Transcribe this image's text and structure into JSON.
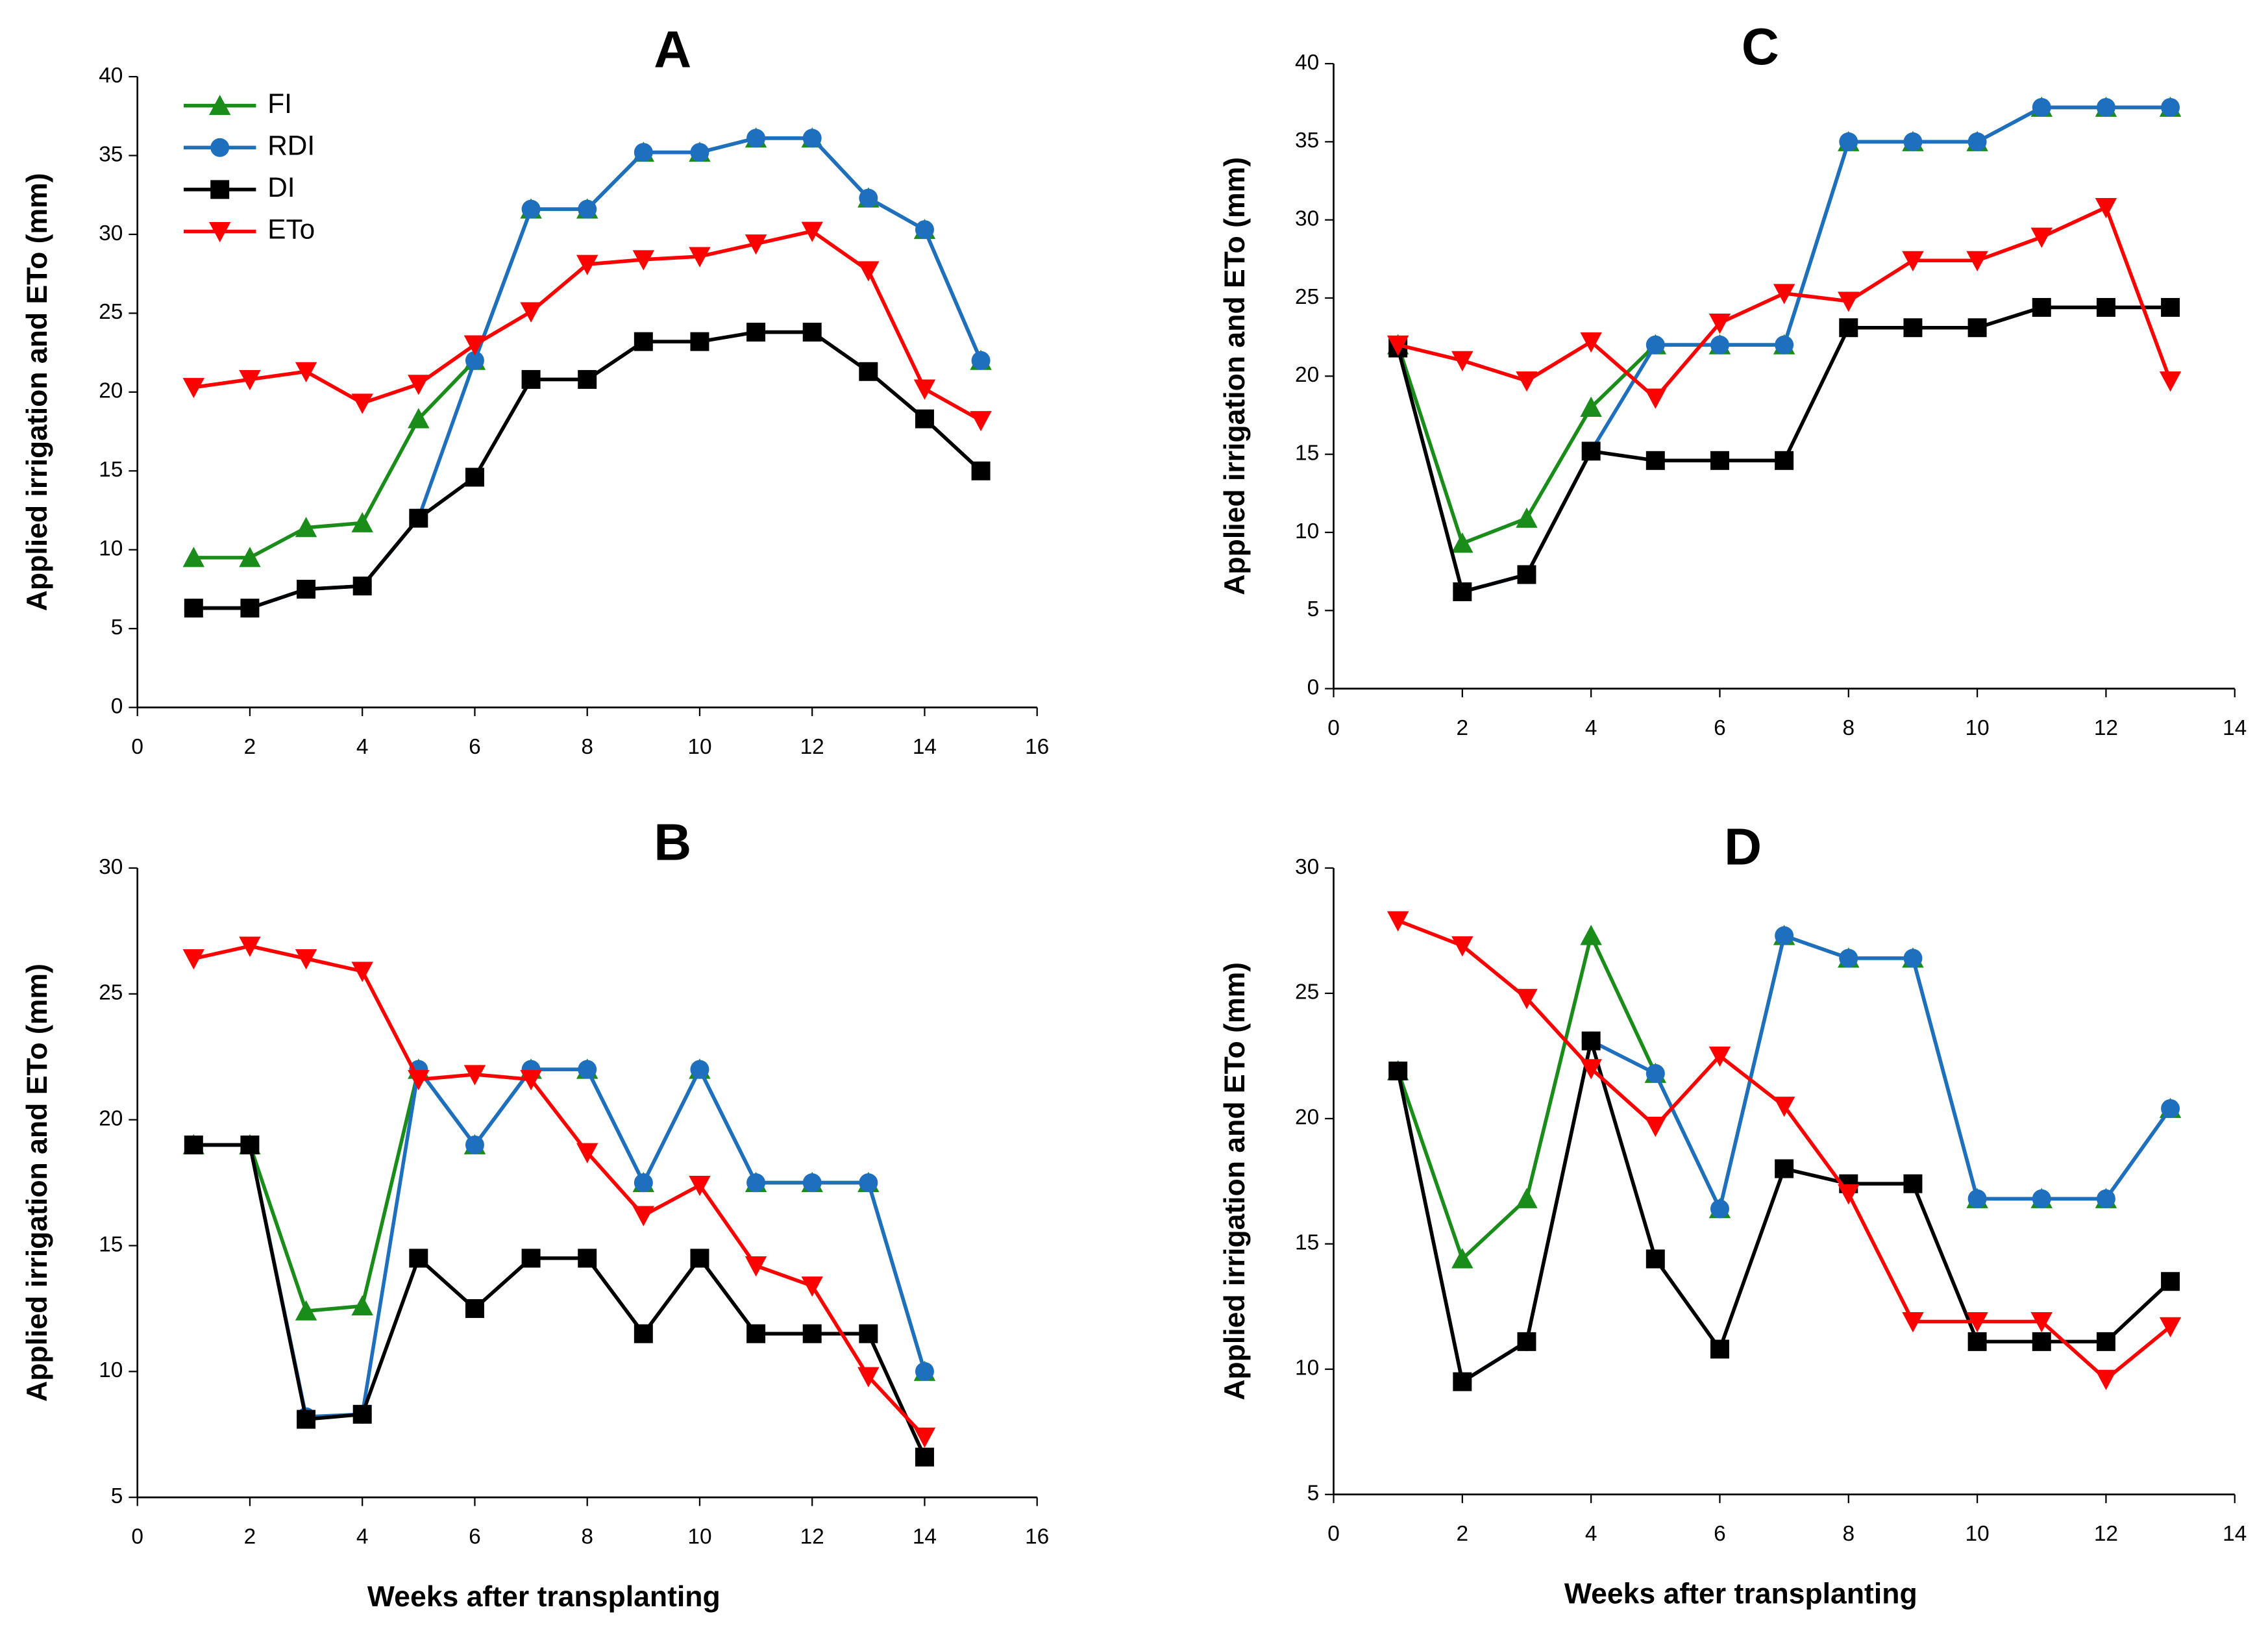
{
  "chart_data": [
    {
      "type": "line",
      "title": "A",
      "y_label": "Applied irrigation and ETo (mm)",
      "x": [
        1,
        2,
        3,
        4,
        5,
        6,
        7,
        8,
        9,
        10,
        11,
        12,
        13,
        14,
        15
      ],
      "xlim": [
        0,
        16
      ],
      "xticks": [
        0,
        2,
        4,
        6,
        8,
        10,
        12,
        14,
        16
      ],
      "ylim": [
        0,
        40
      ],
      "yticks": [
        0,
        5,
        10,
        15,
        20,
        25,
        30,
        35,
        40
      ],
      "legend": "upper left",
      "series": [
        {
          "name": "FI",
          "color": "#1a8c1a",
          "marker": "triangle-up",
          "values": [
            9.5,
            9.5,
            11.4,
            11.7,
            18.3,
            22,
            31.6,
            31.6,
            35.2,
            35.2,
            36.1,
            36.1,
            32.3,
            30.3,
            22
          ]
        },
        {
          "name": "RDI",
          "color": "#1f6fbf",
          "marker": "circle",
          "values": [
            6.3,
            6.3,
            7.5,
            7.7,
            12,
            22,
            31.6,
            31.6,
            35.2,
            35.2,
            36.1,
            36.1,
            32.3,
            30.3,
            22
          ]
        },
        {
          "name": "DI",
          "color": "#000000",
          "marker": "square",
          "values": [
            6.3,
            6.3,
            7.5,
            7.7,
            12,
            14.6,
            20.8,
            20.8,
            23.2,
            23.2,
            23.8,
            23.8,
            21.3,
            18.3,
            15
          ]
        },
        {
          "name": "ETo",
          "color": "#ff0000",
          "marker": "triangle-down",
          "values": [
            20.3,
            20.8,
            21.3,
            19.3,
            20.5,
            23,
            25.1,
            28.1,
            28.4,
            28.6,
            29.4,
            30.2,
            27.7,
            20.2,
            18.2
          ]
        }
      ]
    },
    {
      "type": "line",
      "title": "C",
      "y_label": "Applied irrigation and ETo (mm)",
      "x": [
        1,
        2,
        3,
        4,
        5,
        6,
        7,
        8,
        9,
        10,
        11,
        12,
        13
      ],
      "xlim": [
        0,
        14
      ],
      "xticks": [
        0,
        2,
        4,
        6,
        8,
        10,
        12,
        14
      ],
      "ylim": [
        0,
        40
      ],
      "yticks": [
        0,
        5,
        10,
        15,
        20,
        25,
        30,
        35,
        40
      ],
      "series": [
        {
          "color": "#1a8c1a",
          "marker": "triangle-up",
          "values": [
            22,
            9.3,
            10.9,
            18,
            22,
            22,
            22,
            35,
            35,
            35,
            37.2,
            37.2,
            37.2
          ]
        },
        {
          "color": "#1f6fbf",
          "marker": "circle",
          "values": [
            21.8,
            6.2,
            7.3,
            15.2,
            22,
            22,
            22,
            35,
            35,
            35,
            37.2,
            37.2,
            37.2
          ]
        },
        {
          "color": "#000000",
          "marker": "square",
          "values": [
            21.8,
            6.2,
            7.3,
            15.2,
            14.6,
            14.6,
            14.6,
            23.1,
            23.1,
            23.1,
            24.4,
            24.4,
            24.4
          ]
        },
        {
          "color": "#ff0000",
          "marker": "triangle-down",
          "values": [
            22,
            21,
            19.7,
            22.2,
            18.6,
            23.4,
            25.3,
            24.8,
            27.4,
            27.4,
            28.9,
            30.8,
            19.7
          ]
        }
      ]
    },
    {
      "type": "line",
      "title": "B",
      "y_label": "Applied irrigation and ETo (mm)",
      "x_label": "Weeks after transplanting",
      "x": [
        1,
        2,
        3,
        4,
        5,
        6,
        7,
        8,
        9,
        10,
        11,
        12,
        13,
        14
      ],
      "xlim": [
        0,
        16
      ],
      "xticks": [
        0,
        2,
        4,
        6,
        8,
        10,
        12,
        14,
        16
      ],
      "ylim": [
        5,
        30
      ],
      "yticks": [
        5,
        10,
        15,
        20,
        25,
        30
      ],
      "series": [
        {
          "color": "#1a8c1a",
          "marker": "triangle-up",
          "values": [
            19,
            19,
            12.4,
            12.6,
            22,
            19,
            22,
            22,
            17.5,
            22,
            17.5,
            17.5,
            17.5,
            10
          ]
        },
        {
          "color": "#1f6fbf",
          "marker": "circle",
          "values": [
            19,
            19,
            8.2,
            8.3,
            22,
            19,
            22,
            22,
            17.5,
            22,
            17.5,
            17.5,
            17.5,
            10
          ]
        },
        {
          "color": "#000000",
          "marker": "square",
          "values": [
            19,
            19,
            8.1,
            8.3,
            14.5,
            12.5,
            14.5,
            14.5,
            11.5,
            14.5,
            11.5,
            11.5,
            11.5,
            6.6
          ]
        },
        {
          "color": "#ff0000",
          "marker": "triangle-down",
          "values": [
            26.4,
            26.9,
            26.4,
            25.9,
            21.6,
            21.8,
            21.6,
            18.7,
            16.2,
            17.4,
            14.2,
            13.4,
            9.8,
            7.4
          ]
        }
      ]
    },
    {
      "type": "line",
      "title": "D",
      "y_label": "Applied irrigation and ETo (mm)",
      "x_label": "Weeks after transplanting",
      "x": [
        1,
        2,
        3,
        4,
        5,
        6,
        7,
        8,
        9,
        10,
        11,
        12,
        13
      ],
      "xlim": [
        0,
        14
      ],
      "xticks": [
        0,
        2,
        4,
        6,
        8,
        10,
        12,
        14
      ],
      "ylim": [
        5,
        30
      ],
      "yticks": [
        5,
        10,
        15,
        20,
        25,
        30
      ],
      "series": [
        {
          "color": "#1a8c1a",
          "marker": "triangle-up",
          "values": [
            21.9,
            14.4,
            16.8,
            27.3,
            21.8,
            16.4,
            27.3,
            26.4,
            26.4,
            16.8,
            16.8,
            16.8,
            20.4
          ]
        },
        {
          "color": "#1f6fbf",
          "marker": "circle",
          "values": [
            21.9,
            9.5,
            11.1,
            23.1,
            21.8,
            16.4,
            27.3,
            26.4,
            26.4,
            16.8,
            16.8,
            16.8,
            20.4
          ]
        },
        {
          "color": "#000000",
          "marker": "square",
          "values": [
            21.9,
            9.5,
            11.1,
            23.1,
            14.4,
            10.8,
            18,
            17.4,
            17.4,
            11.1,
            11.1,
            11.1,
            13.5
          ]
        },
        {
          "color": "#ff0000",
          "marker": "triangle-down",
          "values": [
            27.9,
            26.9,
            24.8,
            22,
            19.7,
            22.5,
            20.5,
            17,
            11.9,
            11.9,
            11.9,
            9.6,
            11.7
          ]
        }
      ]
    }
  ]
}
